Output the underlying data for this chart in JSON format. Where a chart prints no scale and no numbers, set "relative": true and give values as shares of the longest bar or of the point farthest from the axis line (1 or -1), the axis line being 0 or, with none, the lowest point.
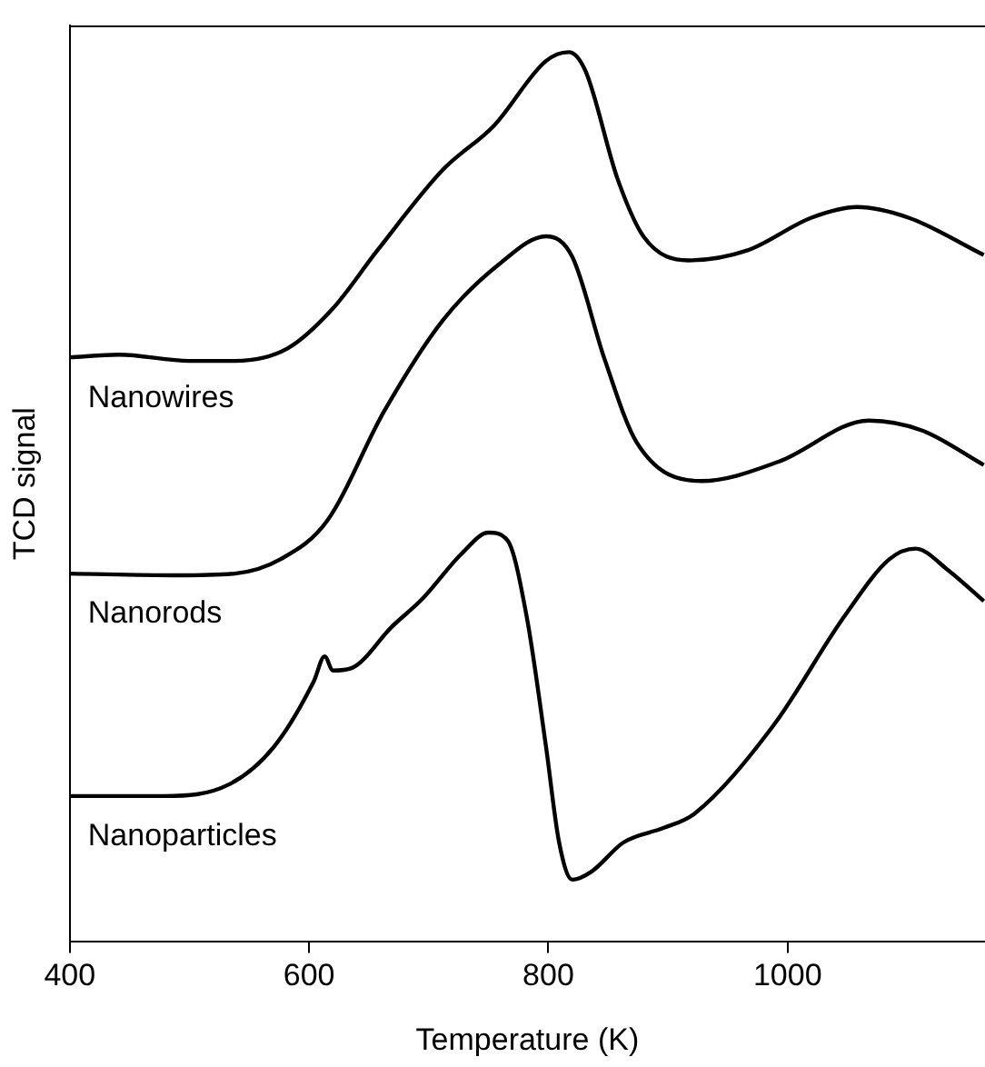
{
  "chart_data": {
    "type": "line",
    "relative": true,
    "xlabel": "Temperature (K)",
    "ylabel": "TCD signal",
    "xlim": [
      400,
      1165
    ],
    "xticks": [
      400,
      600,
      800,
      1000
    ],
    "grid": false,
    "legend": false,
    "marker": "none",
    "line_style": "solid",
    "series": [
      {
        "name": "Nanowires",
        "color": "#000000",
        "x": [
          400,
          441,
          500,
          538,
          582,
          620,
          657,
          712,
          755,
          798,
          817,
          831,
          858,
          880,
          917,
          966,
          1020,
          1058,
          1101,
          1164
        ],
        "values": [
          0.657,
          0.66,
          0.653,
          0.653,
          0.667,
          0.712,
          0.777,
          0.868,
          0.918,
          0.99,
          1.0,
          0.979,
          0.857,
          0.792,
          0.766,
          0.777,
          0.814,
          0.826,
          0.814,
          0.772
        ]
      },
      {
        "name": "Nanorods",
        "color": "#000000",
        "x": [
          400,
          490,
          538,
          576,
          615,
          663,
          712,
          760,
          798,
          820,
          847,
          874,
          928,
          993,
          1068,
          1112,
          1164
        ],
        "values": [
          0.414,
          0.412,
          0.414,
          0.43,
          0.473,
          0.597,
          0.699,
          0.763,
          0.793,
          0.77,
          0.655,
          0.561,
          0.518,
          0.54,
          0.586,
          0.575,
          0.536
        ]
      },
      {
        "name": "Nanoparticles",
        "color": "#000000",
        "x": [
          400,
          479,
          533,
          571,
          604,
          613,
          620,
          636,
          669,
          695,
          728,
          750,
          766,
          782,
          798,
          809,
          820,
          836,
          863,
          896,
          922,
          988,
          1047,
          1085,
          1107,
          1134,
          1164
        ],
        "values": [
          0.164,
          0.164,
          0.177,
          0.22,
          0.293,
          0.321,
          0.305,
          0.308,
          0.354,
          0.386,
          0.437,
          0.46,
          0.451,
          0.365,
          0.22,
          0.112,
          0.07,
          0.079,
          0.112,
          0.128,
          0.144,
          0.243,
          0.365,
          0.43,
          0.442,
          0.418,
          0.383
        ]
      }
    ]
  }
}
